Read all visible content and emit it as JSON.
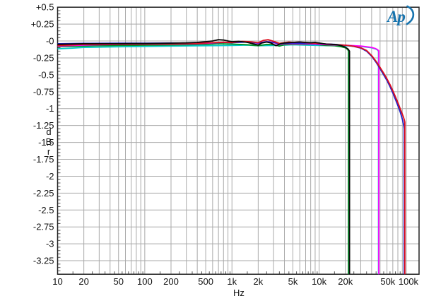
{
  "logo": {
    "text": "Ap",
    "color": "#1673ae"
  },
  "axis_labels": {
    "x": "Hz",
    "y": [
      "d",
      "B",
      "r"
    ]
  },
  "chart_data": {
    "type": "line",
    "title": "",
    "xlabel": "Hz",
    "ylabel": "dBr",
    "x_scale": "log",
    "x_range": [
      10,
      140000
    ],
    "y_range": [
      -3.45,
      0.5
    ],
    "y_major_step": 0.25,
    "y_minor_step": 0.05,
    "grid": true,
    "legend": "none",
    "grid_color": "#a9a9a9",
    "frame_color": "#222222",
    "tick_color": "#555555",
    "x_ticks": [
      {
        "label": "10",
        "f": 10,
        "dx": 0
      },
      {
        "label": "20",
        "f": 20,
        "dx": 0
      },
      {
        "label": "50",
        "f": 50,
        "dx": 0
      },
      {
        "label": "100",
        "f": 100,
        "dx": 0
      },
      {
        "label": "200",
        "f": 200,
        "dx": 0
      },
      {
        "label": "500",
        "f": 500,
        "dx": 0
      },
      {
        "label": "1k",
        "f": 1000,
        "dx": 0
      },
      {
        "label": "2k",
        "f": 2000,
        "dx": 0
      },
      {
        "label": "5k",
        "f": 5000,
        "dx": 0
      },
      {
        "label": "10k",
        "f": 10000,
        "dx": 0
      },
      {
        "label": "20k",
        "f": 20000,
        "dx": 0
      },
      {
        "label": "50k",
        "f": 50000,
        "dx": 11
      },
      {
        "label": "100k",
        "f": 100000,
        "dx": 3
      }
    ],
    "y_ticks": [
      {
        "label": "+0.5",
        "v": 0.5
      },
      {
        "label": "+0.25",
        "v": 0.25
      },
      {
        "label": "-0",
        "v": 0
      },
      {
        "label": "-0.25",
        "v": -0.25
      },
      {
        "label": "-0.5",
        "v": -0.5
      },
      {
        "label": "-0.75",
        "v": -0.75
      },
      {
        "label": "-1",
        "v": -1
      },
      {
        "label": "-1.25",
        "v": -1.25
      },
      {
        "label": "-1.5",
        "v": -1.5
      },
      {
        "label": "-1.75",
        "v": -1.75
      },
      {
        "label": "-2",
        "v": -2
      },
      {
        "label": "-2.25",
        "v": -2.25
      },
      {
        "label": "-2.5",
        "v": -2.5
      },
      {
        "label": "-2.75",
        "v": -2.75
      },
      {
        "label": "-3",
        "v": -3
      },
      {
        "label": "-3.25",
        "v": -3.25
      }
    ],
    "series": [
      {
        "name": "cyan-trace",
        "color": "#00c9c9",
        "cutoff_hz": 48000,
        "points": [
          [
            10,
            -0.115
          ],
          [
            15,
            -0.105
          ],
          [
            20,
            -0.095
          ],
          [
            30,
            -0.09
          ],
          [
            50,
            -0.085
          ],
          [
            100,
            -0.08
          ],
          [
            200,
            -0.075
          ],
          [
            500,
            -0.07
          ],
          [
            1000,
            -0.065
          ],
          [
            1500,
            -0.06
          ],
          [
            2000,
            -0.07
          ],
          [
            3000,
            -0.065
          ],
          [
            4000,
            -0.06
          ],
          [
            5000,
            -0.055
          ],
          [
            7000,
            -0.06
          ],
          [
            10000,
            -0.065
          ],
          [
            15000,
            -0.07
          ],
          [
            20000,
            -0.072
          ],
          [
            25000,
            -0.075
          ],
          [
            30000,
            -0.08
          ],
          [
            35000,
            -0.09
          ],
          [
            40000,
            -0.1
          ],
          [
            44000,
            -0.115
          ],
          [
            46500,
            -0.13
          ],
          [
            48000,
            -0.15
          ],
          [
            48000,
            -3.45
          ]
        ]
      },
      {
        "name": "green-trace",
        "color": "#008f25",
        "cutoff_hz": 22000,
        "points": [
          [
            10,
            -0.085
          ],
          [
            15,
            -0.08
          ],
          [
            20,
            -0.075
          ],
          [
            30,
            -0.07
          ],
          [
            50,
            -0.065
          ],
          [
            100,
            -0.062
          ],
          [
            200,
            -0.058
          ],
          [
            300,
            -0.055
          ],
          [
            500,
            -0.05
          ],
          [
            700,
            -0.04
          ],
          [
            1000,
            -0.045
          ],
          [
            1500,
            -0.055
          ],
          [
            2000,
            -0.07
          ],
          [
            2500,
            -0.05
          ],
          [
            3000,
            -0.055
          ],
          [
            3500,
            -0.075
          ],
          [
            4000,
            -0.055
          ],
          [
            5000,
            -0.05
          ],
          [
            7000,
            -0.05
          ],
          [
            9000,
            -0.045
          ],
          [
            10000,
            -0.055
          ],
          [
            12000,
            -0.065
          ],
          [
            15000,
            -0.07
          ],
          [
            18000,
            -0.085
          ],
          [
            20000,
            -0.1
          ],
          [
            21200,
            -0.125
          ],
          [
            21700,
            -0.15
          ],
          [
            21700,
            -3.45
          ]
        ]
      },
      {
        "name": "magenta-trace",
        "color": "#ff00ff",
        "cutoff_hz": 48000,
        "points": [
          [
            10,
            -0.075
          ],
          [
            15,
            -0.065
          ],
          [
            20,
            -0.06
          ],
          [
            30,
            -0.055
          ],
          [
            50,
            -0.05
          ],
          [
            100,
            -0.048
          ],
          [
            200,
            -0.045
          ],
          [
            400,
            -0.04
          ],
          [
            600,
            -0.03
          ],
          [
            800,
            -0.02
          ],
          [
            1000,
            -0.025
          ],
          [
            1300,
            -0.01
          ],
          [
            1600,
            -0.015
          ],
          [
            2000,
            -0.035
          ],
          [
            2300,
            -0.015
          ],
          [
            2600,
            -0.01
          ],
          [
            3000,
            -0.025
          ],
          [
            3500,
            -0.05
          ],
          [
            4000,
            -0.04
          ],
          [
            5000,
            -0.04
          ],
          [
            7000,
            -0.042
          ],
          [
            10000,
            -0.05
          ],
          [
            15000,
            -0.058
          ],
          [
            20000,
            -0.062
          ],
          [
            25000,
            -0.068
          ],
          [
            30000,
            -0.075
          ],
          [
            35000,
            -0.085
          ],
          [
            40000,
            -0.095
          ],
          [
            44000,
            -0.11
          ],
          [
            46500,
            -0.125
          ],
          [
            48300,
            -0.145
          ],
          [
            48300,
            -3.45
          ]
        ]
      },
      {
        "name": "blue-trace",
        "color": "#2222c8",
        "cutoff_hz": 95000,
        "points": [
          [
            10,
            -0.04
          ],
          [
            20,
            -0.035
          ],
          [
            50,
            -0.032
          ],
          [
            100,
            -0.032
          ],
          [
            200,
            -0.03
          ],
          [
            500,
            -0.028
          ],
          [
            800,
            -0.02
          ],
          [
            1000,
            -0.025
          ],
          [
            1500,
            -0.015
          ],
          [
            2000,
            -0.03
          ],
          [
            2500,
            -0.012
          ],
          [
            3000,
            -0.02
          ],
          [
            3500,
            -0.04
          ],
          [
            4000,
            -0.035
          ],
          [
            5000,
            -0.03
          ],
          [
            7000,
            -0.035
          ],
          [
            10000,
            -0.04
          ],
          [
            15000,
            -0.05
          ],
          [
            20000,
            -0.062
          ],
          [
            25000,
            -0.08
          ],
          [
            30000,
            -0.105
          ],
          [
            35000,
            -0.15
          ],
          [
            40000,
            -0.225
          ],
          [
            45000,
            -0.315
          ],
          [
            50000,
            -0.41
          ],
          [
            55000,
            -0.5
          ],
          [
            60000,
            -0.585
          ],
          [
            65000,
            -0.675
          ],
          [
            70000,
            -0.77
          ],
          [
            75000,
            -0.865
          ],
          [
            80000,
            -0.955
          ],
          [
            85000,
            -1.05
          ],
          [
            88000,
            -1.11
          ],
          [
            91000,
            -1.18
          ],
          [
            93500,
            -1.25
          ],
          [
            94600,
            -1.3
          ],
          [
            94600,
            -3.45
          ]
        ]
      },
      {
        "name": "red-trace",
        "color": "#dd0f1e",
        "cutoff_hz": 96000,
        "points": [
          [
            10,
            -0.065
          ],
          [
            15,
            -0.058
          ],
          [
            20,
            -0.052
          ],
          [
            30,
            -0.05
          ],
          [
            50,
            -0.048
          ],
          [
            100,
            -0.045
          ],
          [
            200,
            -0.042
          ],
          [
            400,
            -0.035
          ],
          [
            600,
            -0.025
          ],
          [
            800,
            -0.018
          ],
          [
            1000,
            -0.022
          ],
          [
            1300,
            -0.005
          ],
          [
            1600,
            -0.01
          ],
          [
            2000,
            -0.025
          ],
          [
            2300,
            0.01
          ],
          [
            2600,
            0.02
          ],
          [
            3000,
            -0.005
          ],
          [
            3500,
            -0.035
          ],
          [
            4000,
            -0.025
          ],
          [
            4500,
            -0.015
          ],
          [
            5000,
            -0.02
          ],
          [
            6000,
            -0.015
          ],
          [
            7000,
            -0.025
          ],
          [
            8000,
            -0.03
          ],
          [
            10000,
            -0.035
          ],
          [
            12000,
            -0.045
          ],
          [
            15000,
            -0.052
          ],
          [
            20000,
            -0.062
          ],
          [
            25000,
            -0.078
          ],
          [
            30000,
            -0.1
          ],
          [
            35000,
            -0.14
          ],
          [
            40000,
            -0.215
          ],
          [
            45000,
            -0.3
          ],
          [
            50000,
            -0.39
          ],
          [
            55000,
            -0.475
          ],
          [
            60000,
            -0.56
          ],
          [
            65000,
            -0.645
          ],
          [
            70000,
            -0.735
          ],
          [
            75000,
            -0.825
          ],
          [
            80000,
            -0.91
          ],
          [
            85000,
            -1.0
          ],
          [
            90000,
            -1.08
          ],
          [
            93000,
            -1.13
          ],
          [
            95000,
            -1.17
          ],
          [
            96200,
            -1.2
          ],
          [
            96200,
            -3.45
          ]
        ]
      },
      {
        "name": "black-trace",
        "color": "#080808",
        "cutoff_hz": 22000,
        "points": [
          [
            10,
            -0.05
          ],
          [
            14,
            -0.045
          ],
          [
            20,
            -0.04
          ],
          [
            30,
            -0.04
          ],
          [
            50,
            -0.04
          ],
          [
            70,
            -0.038
          ],
          [
            100,
            -0.038
          ],
          [
            150,
            -0.035
          ],
          [
            200,
            -0.032
          ],
          [
            300,
            -0.028
          ],
          [
            400,
            -0.02
          ],
          [
            500,
            -0.01
          ],
          [
            600,
            0.0
          ],
          [
            700,
            0.02
          ],
          [
            800,
            0.015
          ],
          [
            900,
            0.0
          ],
          [
            1000,
            -0.01
          ],
          [
            1200,
            -0.005
          ],
          [
            1500,
            -0.02
          ],
          [
            1800,
            -0.045
          ],
          [
            2000,
            -0.06
          ],
          [
            2200,
            -0.03
          ],
          [
            2500,
            -0.015
          ],
          [
            2800,
            -0.03
          ],
          [
            3200,
            -0.07
          ],
          [
            3600,
            -0.04
          ],
          [
            4000,
            -0.03
          ],
          [
            5000,
            -0.02
          ],
          [
            6000,
            -0.015
          ],
          [
            7000,
            -0.02
          ],
          [
            8000,
            -0.025
          ],
          [
            9000,
            -0.02
          ],
          [
            10000,
            -0.03
          ],
          [
            12000,
            -0.045
          ],
          [
            14000,
            -0.05
          ],
          [
            16000,
            -0.055
          ],
          [
            18000,
            -0.07
          ],
          [
            20000,
            -0.09
          ],
          [
            21500,
            -0.12
          ],
          [
            22300,
            -0.15
          ],
          [
            22300,
            -3.45
          ]
        ]
      }
    ]
  }
}
